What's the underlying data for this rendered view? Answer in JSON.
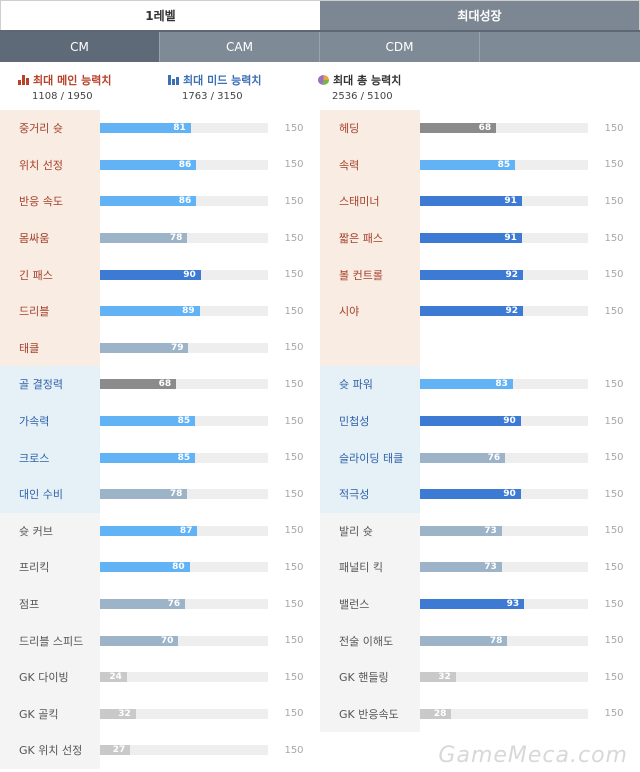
{
  "top_tabs": {
    "level": "1레벨",
    "max_growth": "최대성장"
  },
  "position_tabs": [
    "CM",
    "CAM",
    "CDM"
  ],
  "summary": {
    "main": {
      "title": "최대 메인 능력치",
      "value": "1108 / 1950"
    },
    "mid": {
      "title": "최대 미드 능력치",
      "value": "1763 / 3150"
    },
    "total": {
      "title": "최대 총 능력치",
      "value": "2536 / 5100"
    }
  },
  "colors": {
    "main": "#a5402a",
    "mid": "#2f62a8",
    "light_bar": "#62b3f5",
    "blue_bar": "#3d7ad3",
    "gray_bar": "#9db3c8"
  },
  "max_label": "150",
  "left": [
    {
      "name": "중거리 슛",
      "value": "81",
      "group": "main",
      "color": "light"
    },
    {
      "name": "위치 선정",
      "value": "86",
      "group": "main",
      "color": "light"
    },
    {
      "name": "반응 속도",
      "value": "86",
      "group": "main",
      "color": "light"
    },
    {
      "name": "몸싸움",
      "value": "78",
      "group": "main",
      "color": "gray"
    },
    {
      "name": "긴 패스",
      "value": "90",
      "group": "main",
      "color": "blue"
    },
    {
      "name": "드리블",
      "value": "89",
      "group": "main",
      "color": "light"
    },
    {
      "name": "태클",
      "value": "79",
      "group": "main",
      "color": "gray"
    },
    {
      "name": "골 결정력",
      "value": "68",
      "group": "mid",
      "color": "dark"
    },
    {
      "name": "가속력",
      "value": "85",
      "group": "mid",
      "color": "light"
    },
    {
      "name": "크로스",
      "value": "85",
      "group": "mid",
      "color": "light"
    },
    {
      "name": "대인 수비",
      "value": "78",
      "group": "mid",
      "color": "gray"
    },
    {
      "name": "슛 커브",
      "value": "87",
      "group": "sub",
      "color": "light"
    },
    {
      "name": "프리킥",
      "value": "80",
      "group": "sub",
      "color": "light"
    },
    {
      "name": "점프",
      "value": "76",
      "group": "sub",
      "color": "gray"
    },
    {
      "name": "드리블 스피드",
      "value": "70",
      "group": "sub",
      "color": "gray"
    },
    {
      "name": "GK 다이빙",
      "value": "24",
      "group": "sub",
      "color": "pale"
    },
    {
      "name": "GK 골킥",
      "value": "32",
      "group": "sub",
      "color": "pale"
    },
    {
      "name": "GK 위치 선정",
      "value": "27",
      "group": "sub",
      "color": "pale"
    }
  ],
  "right": [
    {
      "name": "헤딩",
      "value": "68",
      "group": "main",
      "color": "dark"
    },
    {
      "name": "속력",
      "value": "85",
      "group": "main",
      "color": "light"
    },
    {
      "name": "스태미너",
      "value": "91",
      "group": "main",
      "color": "blue"
    },
    {
      "name": "짧은 패스",
      "value": "91",
      "group": "main",
      "color": "blue"
    },
    {
      "name": "볼 컨트롤",
      "value": "92",
      "group": "main",
      "color": "blue"
    },
    {
      "name": "시야",
      "value": "92",
      "group": "main",
      "color": "blue"
    },
    {
      "name": "",
      "value": "",
      "group": "main",
      "color": ""
    },
    {
      "name": "슛 파워",
      "value": "83",
      "group": "mid",
      "color": "light"
    },
    {
      "name": "민첩성",
      "value": "90",
      "group": "mid",
      "color": "blue"
    },
    {
      "name": "슬라이딩 태클",
      "value": "76",
      "group": "mid",
      "color": "gray"
    },
    {
      "name": "적극성",
      "value": "90",
      "group": "mid",
      "color": "blue"
    },
    {
      "name": "발리 슛",
      "value": "73",
      "group": "sub",
      "color": "gray"
    },
    {
      "name": "패널티 킥",
      "value": "73",
      "group": "sub",
      "color": "gray"
    },
    {
      "name": "밸런스",
      "value": "93",
      "group": "sub",
      "color": "blue"
    },
    {
      "name": "전술 이해도",
      "value": "78",
      "group": "sub",
      "color": "gray"
    },
    {
      "name": "GK 핸들링",
      "value": "32",
      "group": "sub",
      "color": "pale"
    },
    {
      "name": "GK 반응속도",
      "value": "28",
      "group": "sub",
      "color": "pale"
    }
  ],
  "watermark": "GameMeca.com"
}
